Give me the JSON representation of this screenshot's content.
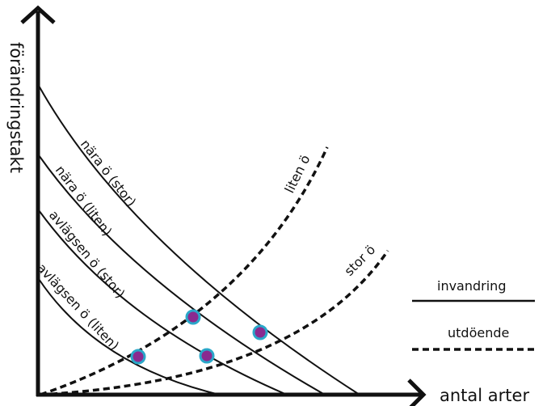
{
  "axes": {
    "y_label": "förändringstakt",
    "x_label": "antal arter"
  },
  "curves": {
    "immigration": [
      {
        "id": "nara-stor",
        "label": "nära ö (stor)"
      },
      {
        "id": "nara-liten",
        "label": "nära ö (liten)"
      },
      {
        "id": "avlagsen-stor",
        "label": "avlägsen ö (stor)"
      },
      {
        "id": "avlagsen-liten",
        "label": "avlägsen ö (liten)"
      }
    ],
    "extinction": [
      {
        "id": "liten",
        "label": "liten ö"
      },
      {
        "id": "stor",
        "label": "stor ö"
      }
    ]
  },
  "legend": {
    "solid_label": "invandring",
    "dashed_label": "utdöende"
  },
  "colors": {
    "line": "#111111",
    "point_fill": "#8a2a8f",
    "point_stroke": "#2aa7c9"
  }
}
